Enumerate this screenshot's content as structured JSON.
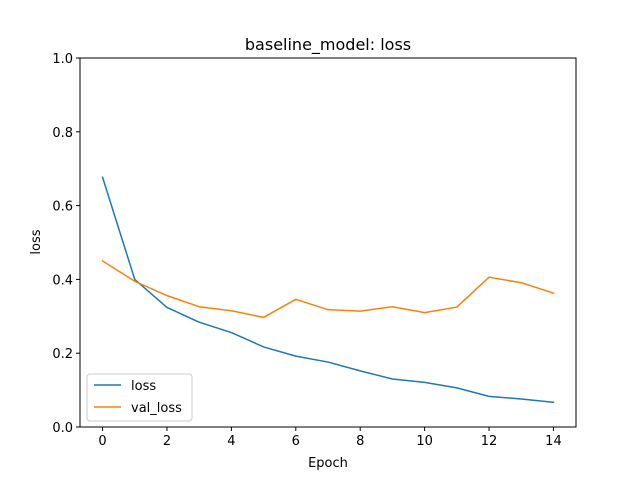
{
  "chart_data": {
    "type": "line",
    "title": "baseline_model: loss",
    "xlabel": "Epoch",
    "ylabel": "loss",
    "xlim": [
      -0.7,
      14.7
    ],
    "ylim": [
      0.0,
      1.0
    ],
    "xticks": [
      0,
      2,
      4,
      6,
      8,
      10,
      12,
      14
    ],
    "yticks": [
      0.0,
      0.2,
      0.4,
      0.6,
      0.8,
      1.0
    ],
    "xtick_labels": [
      "0",
      "2",
      "4",
      "6",
      "8",
      "10",
      "12",
      "14"
    ],
    "ytick_labels": [
      "0.0",
      "0.2",
      "0.4",
      "0.6",
      "0.8",
      "1.0"
    ],
    "grid": false,
    "legend_position": "lower-left",
    "x": [
      0,
      1,
      2,
      3,
      4,
      5,
      6,
      7,
      8,
      9,
      10,
      11,
      12,
      13,
      14
    ],
    "series": [
      {
        "name": "loss",
        "color": "#1f77b4",
        "values": [
          0.677,
          0.4,
          0.324,
          0.284,
          0.256,
          0.217,
          0.192,
          0.176,
          0.152,
          0.13,
          0.121,
          0.106,
          0.083,
          0.076,
          0.067
        ]
      },
      {
        "name": "val_loss",
        "color": "#ff7f0e",
        "values": [
          0.45,
          0.395,
          0.356,
          0.326,
          0.315,
          0.297,
          0.346,
          0.318,
          0.314,
          0.326,
          0.31,
          0.325,
          0.406,
          0.391,
          0.363
        ]
      }
    ]
  }
}
